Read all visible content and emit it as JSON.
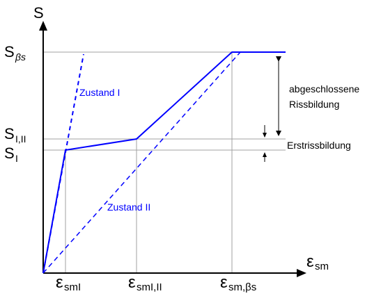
{
  "colors": {
    "curve": "#0000ff",
    "grid": "#a0a0a0",
    "axis": "#000000",
    "text": "#000000"
  },
  "axes": {
    "y_label": "S",
    "x_label_main": "ε",
    "x_label_sub": "sm"
  },
  "y_ticks": {
    "s_beta_s": {
      "main": "S",
      "sub": "βs"
    },
    "s_I_II": {
      "main": "S",
      "sub": "I,II"
    },
    "s_I": {
      "main": "S",
      "sub": "I"
    }
  },
  "x_ticks": {
    "eps_smI": {
      "main": "ε",
      "sub": "smI"
    },
    "eps_smI_II": {
      "main": "ε",
      "sub": "smI,II"
    },
    "eps_sm_beta_s": {
      "main": "ε",
      "sub": "sm,βs"
    }
  },
  "curve_labels": {
    "state_1": "Zustand I",
    "state_2": "Zustand II"
  },
  "annotations": {
    "completed_line1": "abgeschlossene",
    "completed_line2": "Rissbildung",
    "first_cracking": "Erstrissbildung"
  }
}
